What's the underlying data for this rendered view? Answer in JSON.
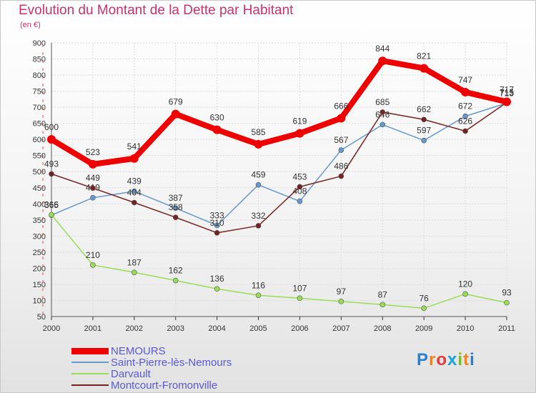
{
  "title": "Evolution du Montant de la Dette par Habitant",
  "unit": "(en €)",
  "logo": "Proxiti",
  "chart_data": {
    "type": "line",
    "x": [
      "2000",
      "2001",
      "2002",
      "2003",
      "2004",
      "2005",
      "2006",
      "2007",
      "2008",
      "2009",
      "2010",
      "2011"
    ],
    "ylim": [
      50,
      900
    ],
    "yticks": [
      50,
      100,
      150,
      200,
      250,
      300,
      350,
      400,
      450,
      500,
      550,
      600,
      650,
      700,
      750,
      800,
      850,
      900
    ],
    "grid": true,
    "legend_position": "bottom-left",
    "series": [
      {
        "name": "NEMOURS",
        "color": "#ee0000",
        "values": [
          600,
          523,
          541,
          679,
          630,
          585,
          619,
          666,
          844,
          821,
          747,
          717
        ]
      },
      {
        "name": "Saint-Pierre-lès-Nemours",
        "color": "#6699cc",
        "values": [
          365,
          419,
          439,
          387,
          333,
          459,
          408,
          567,
          646,
          597,
          672,
          713
        ]
      },
      {
        "name": "Darvault",
        "color": "#99dd55",
        "values": [
          366,
          210,
          187,
          162,
          136,
          116,
          107,
          97,
          87,
          76,
          120,
          93
        ]
      },
      {
        "name": "Montcourt-Fromonville",
        "color": "#772222",
        "values": [
          493,
          449,
          404,
          358,
          310,
          332,
          453,
          486,
          685,
          662,
          626,
          715
        ]
      }
    ]
  }
}
